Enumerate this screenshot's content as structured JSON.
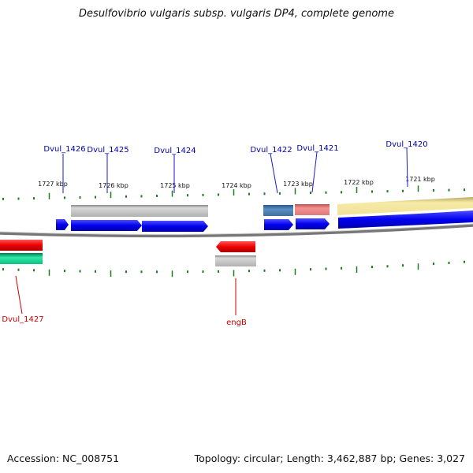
{
  "title": "Desulfovibrio vulgaris subsp. vulgaris DP4, complete genome",
  "footer": {
    "accession": "Accession: NC_008751",
    "stats": "Topology: circular; Length: 3,462,887 bp; Genes: 3,027"
  },
  "colors": {
    "backbone": "#888888",
    "tick": "#1f7a1f",
    "forward_gene": "#0000ee",
    "reverse_gene": "#ee0000",
    "forward_label": "#0000aa",
    "reverse_label": "#cc0000"
  },
  "scale_labels": [
    "1727 kbp",
    "1726 kbp",
    "1725 kbp",
    "1724 kbp",
    "1723 kbp",
    "1722 kbp",
    "1721 kbp"
  ],
  "gene_labels_forward": [
    "Dvul_1426",
    "Dvul_1425",
    "Dvul_1424",
    "Dvul_1422",
    "Dvul_1421",
    "Dvul_1420"
  ],
  "gene_labels_reverse": [
    "Dvul_1427",
    "engB"
  ]
}
